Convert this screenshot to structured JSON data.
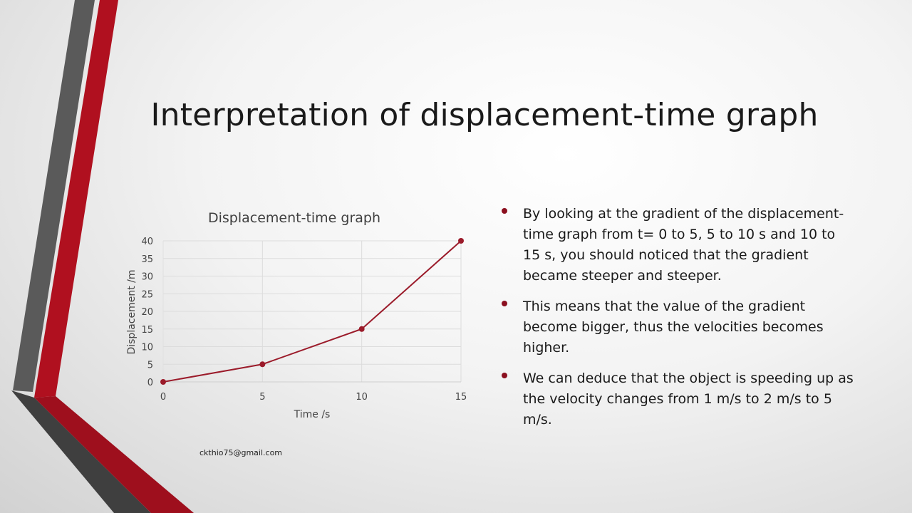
{
  "slide": {
    "title": "Interpretation of displacement-time graph",
    "email": "ckthio75@gmail.com",
    "bullets": [
      "By looking at the gradient of the displacement-time graph from t= 0 to 5, 5 to 10 s and 10 to 15 s, you should noticed that the gradient became steeper and steeper.",
      "This means that the value of the gradient become bigger, thus the velocities becomes higher.",
      "We can deduce that the object is speeding up as the velocity changes from 1 m/s to 2 m/s to 5 m/s."
    ]
  },
  "colors": {
    "accent_red": "#a8111f",
    "dark_gray": "#555555",
    "line": "#9b1b2a"
  },
  "chart_data": {
    "type": "line",
    "title": "Displacement-time graph",
    "xlabel": "Time /s",
    "ylabel": "Displacement /m",
    "x": [
      0,
      5,
      10,
      15
    ],
    "series": [
      {
        "values": [
          0,
          5,
          15,
          40
        ]
      }
    ],
    "xticks": [
      0,
      5,
      10,
      15
    ],
    "yticks": [
      0,
      5,
      10,
      15,
      20,
      25,
      30,
      35,
      40
    ],
    "xlim": [
      0,
      15
    ],
    "ylim": [
      0,
      40
    ],
    "grid": true,
    "markers": true
  }
}
